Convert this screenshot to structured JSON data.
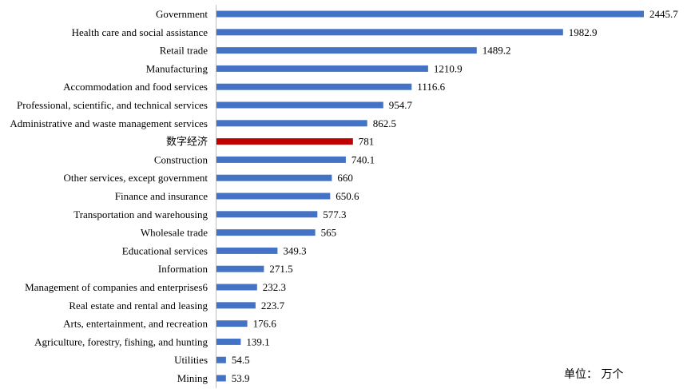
{
  "chart_data": {
    "type": "bar",
    "orientation": "horizontal",
    "categories": [
      "Government",
      "Health care and social assistance",
      "Retail trade",
      "Manufacturing",
      "Accommodation and food services",
      "Professional, scientific, and technical services",
      "Administrative and waste management services",
      "数字经济",
      "Construction",
      "Other services, except government",
      "Finance and insurance",
      "Transportation and warehousing",
      "Wholesale trade",
      "Educational services",
      "Information",
      "Management of companies and enterprises6",
      "Real estate and rental and leasing",
      "Arts, entertainment, and recreation",
      "Agriculture, forestry, fishing, and hunting",
      "Utilities",
      "Mining"
    ],
    "values": [
      2445.7,
      1982.9,
      1489.2,
      1210.9,
      1116.6,
      954.7,
      862.5,
      781,
      740.1,
      660,
      650.6,
      577.3,
      565,
      349.3,
      271.5,
      232.3,
      223.7,
      176.6,
      139.1,
      54.5,
      53.9
    ],
    "value_labels": [
      "2445.7",
      "1982.9",
      "1489.2",
      "1210.9",
      "1116.6",
      "954.7",
      "862.5",
      "781",
      "740.1",
      "660",
      "650.6",
      "577.3",
      "565",
      "349.3",
      "271.5",
      "232.3",
      "223.7",
      "176.6",
      "139.1",
      "54.5",
      "53.9"
    ],
    "highlight_category": "数字经济",
    "colors": {
      "bar": "#4472C4",
      "highlight": "#C00000",
      "axis": "#BFBFBF"
    },
    "unit_note": "单位： 万个",
    "xlim": [
      0,
      2445.7
    ],
    "grid": false,
    "legend": "none"
  }
}
